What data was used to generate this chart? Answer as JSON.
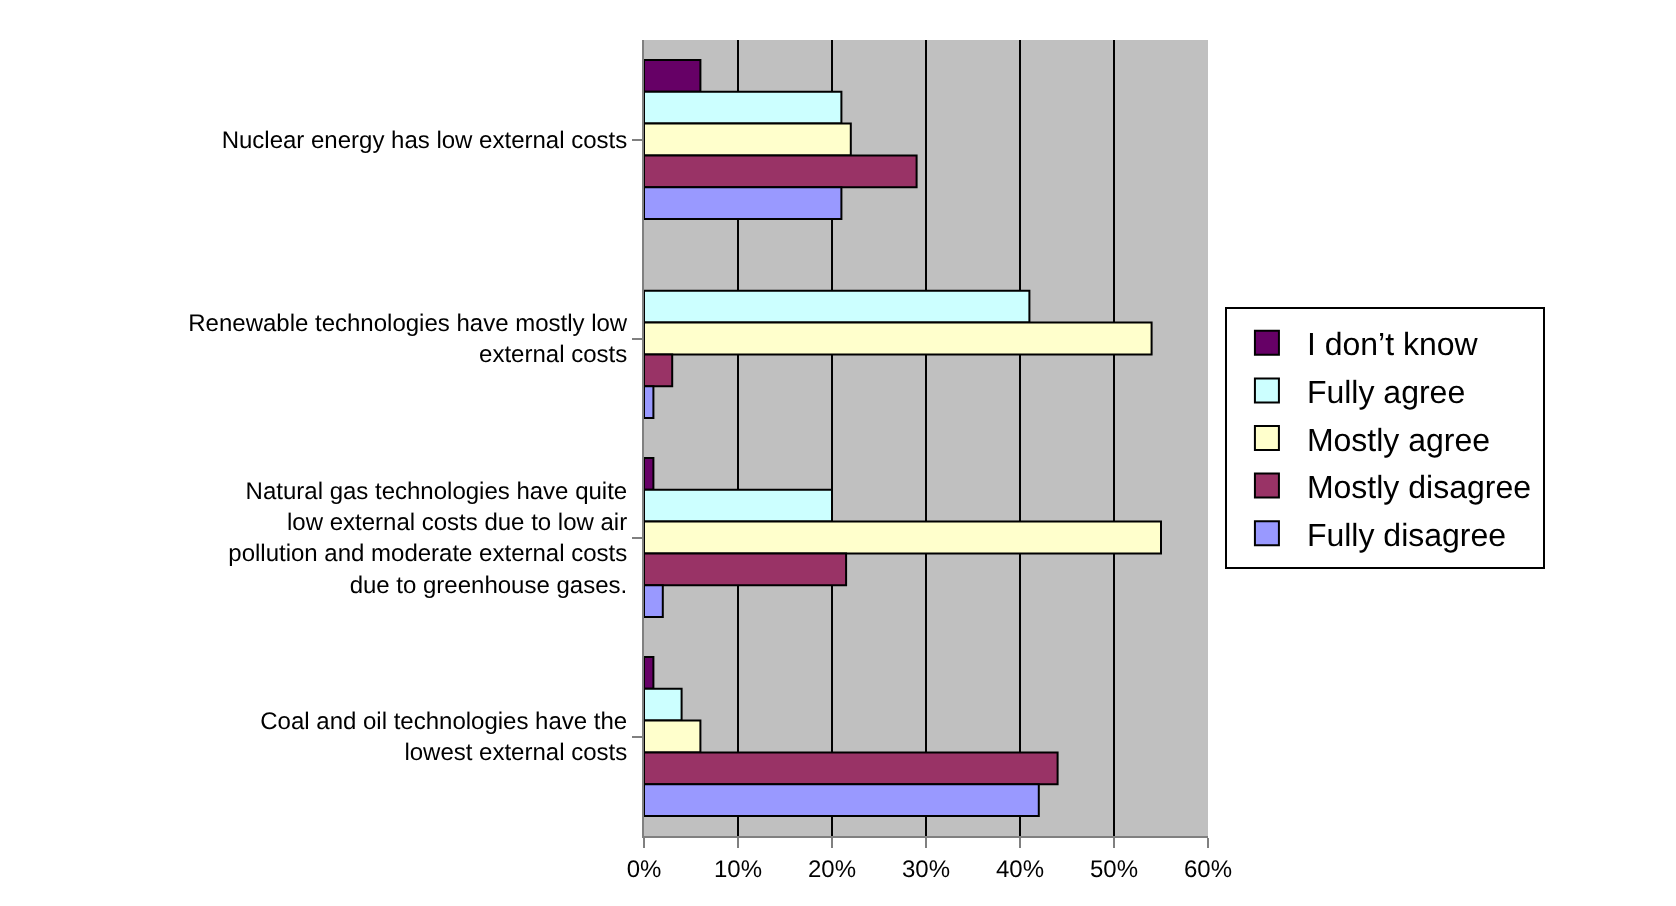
{
  "chart_data": {
    "type": "bar",
    "orientation": "horizontal",
    "categories": [
      "Nuclear energy has low external costs",
      "Renewable technologies have mostly low external costs",
      "Natural gas technologies have quite low external costs due to low air pollution and moderate external costs due to greenhouse gases.",
      "Coal and oil technologies have the lowest external costs"
    ],
    "series": [
      {
        "name": "I don’t know",
        "color": "#660066",
        "values": [
          6,
          0,
          1,
          1
        ]
      },
      {
        "name": "Fully agree",
        "color": "#ccffff",
        "values": [
          21,
          41,
          20,
          4
        ]
      },
      {
        "name": "Mostly agree",
        "color": "#ffffcc",
        "values": [
          22,
          54,
          55,
          6
        ]
      },
      {
        "name": "Mostly disagree",
        "color": "#993366",
        "values": [
          29,
          3,
          21.5,
          44
        ]
      },
      {
        "name": "Fully disagree",
        "color": "#9999ff",
        "values": [
          21,
          1,
          2,
          42
        ]
      }
    ],
    "xlim": [
      0,
      60
    ],
    "xticks": [
      {
        "value": 0,
        "label": "0%"
      },
      {
        "value": 10,
        "label": "10%"
      },
      {
        "value": 20,
        "label": "20%"
      },
      {
        "value": 30,
        "label": "30%"
      },
      {
        "value": 40,
        "label": "40%"
      },
      {
        "value": 50,
        "label": "50%"
      },
      {
        "value": 60,
        "label": "60%"
      }
    ],
    "grid": "x",
    "legend": "right"
  }
}
